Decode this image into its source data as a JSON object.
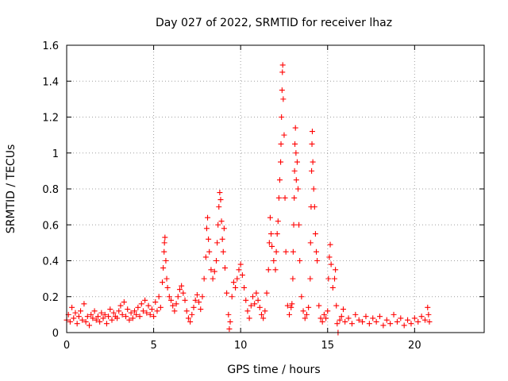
{
  "chart_data": {
    "type": "scatter",
    "title": "Day 027 of 2022, SRMTID for receiver lhaz",
    "xlabel": "GPS time / hours",
    "ylabel": "SRMTID / TECUs",
    "xlim": [
      0,
      24
    ],
    "ylim": [
      0,
      1.6
    ],
    "x_ticks": [
      0,
      5,
      10,
      15,
      20
    ],
    "x_tick_labels": [
      "0",
      "5",
      "10",
      "15",
      "20"
    ],
    "y_ticks": [
      0,
      0.2,
      0.4,
      0.6,
      0.8,
      1.0,
      1.2,
      1.4,
      1.6
    ],
    "y_tick_labels": [
      "0",
      "0.2",
      "0.4",
      "0.6",
      "0.8",
      "1",
      "1.2",
      "1.4",
      "1.6"
    ],
    "grid": true,
    "marker": "+",
    "color": "#ff0000",
    "series": [
      {
        "name": "SRMTID",
        "points": [
          [
            0.0,
            0.07
          ],
          [
            0.1,
            0.1
          ],
          [
            0.2,
            0.06
          ],
          [
            0.3,
            0.14
          ],
          [
            0.4,
            0.08
          ],
          [
            0.5,
            0.11
          ],
          [
            0.6,
            0.05
          ],
          [
            0.7,
            0.09
          ],
          [
            0.8,
            0.12
          ],
          [
            0.9,
            0.07
          ],
          [
            1.0,
            0.16
          ],
          [
            1.1,
            0.06
          ],
          [
            1.2,
            0.09
          ],
          [
            1.3,
            0.04
          ],
          [
            1.4,
            0.1
          ],
          [
            1.5,
            0.08
          ],
          [
            1.6,
            0.12
          ],
          [
            1.7,
            0.07
          ],
          [
            1.8,
            0.09
          ],
          [
            1.9,
            0.06
          ],
          [
            2.0,
            0.11
          ],
          [
            2.1,
            0.08
          ],
          [
            2.2,
            0.1
          ],
          [
            2.3,
            0.05
          ],
          [
            2.4,
            0.09
          ],
          [
            2.5,
            0.13
          ],
          [
            2.6,
            0.07
          ],
          [
            2.7,
            0.11
          ],
          [
            2.8,
            0.09
          ],
          [
            2.9,
            0.08
          ],
          [
            3.0,
            0.12
          ],
          [
            3.1,
            0.15
          ],
          [
            3.2,
            0.1
          ],
          [
            3.3,
            0.17
          ],
          [
            3.4,
            0.09
          ],
          [
            3.5,
            0.13
          ],
          [
            3.6,
            0.07
          ],
          [
            3.7,
            0.11
          ],
          [
            3.8,
            0.08
          ],
          [
            3.9,
            0.12
          ],
          [
            4.0,
            0.1
          ],
          [
            4.1,
            0.14
          ],
          [
            4.2,
            0.09
          ],
          [
            4.3,
            0.16
          ],
          [
            4.4,
            0.12
          ],
          [
            4.5,
            0.18
          ],
          [
            4.6,
            0.11
          ],
          [
            4.7,
            0.15
          ],
          [
            4.8,
            0.1
          ],
          [
            4.9,
            0.13
          ],
          [
            5.0,
            0.09
          ],
          [
            5.1,
            0.17
          ],
          [
            5.2,
            0.12
          ],
          [
            5.3,
            0.2
          ],
          [
            5.4,
            0.14
          ],
          [
            5.5,
            0.28
          ],
          [
            5.55,
            0.36
          ],
          [
            5.6,
            0.45
          ],
          [
            5.62,
            0.5
          ],
          [
            5.65,
            0.53
          ],
          [
            5.7,
            0.4
          ],
          [
            5.75,
            0.3
          ],
          [
            5.8,
            0.25
          ],
          [
            5.9,
            0.2
          ],
          [
            6.0,
            0.18
          ],
          [
            6.1,
            0.15
          ],
          [
            6.2,
            0.12
          ],
          [
            6.3,
            0.16
          ],
          [
            6.4,
            0.2
          ],
          [
            6.5,
            0.24
          ],
          [
            6.6,
            0.26
          ],
          [
            6.7,
            0.22
          ],
          [
            6.8,
            0.18
          ],
          [
            6.9,
            0.12
          ],
          [
            7.0,
            0.08
          ],
          [
            7.1,
            0.06
          ],
          [
            7.2,
            0.1
          ],
          [
            7.3,
            0.14
          ],
          [
            7.4,
            0.18
          ],
          [
            7.5,
            0.21
          ],
          [
            7.6,
            0.17
          ],
          [
            7.7,
            0.13
          ],
          [
            7.8,
            0.2
          ],
          [
            7.9,
            0.3
          ],
          [
            8.0,
            0.42
          ],
          [
            8.05,
            0.58
          ],
          [
            8.1,
            0.64
          ],
          [
            8.15,
            0.52
          ],
          [
            8.2,
            0.45
          ],
          [
            8.3,
            0.35
          ],
          [
            8.4,
            0.3
          ],
          [
            8.5,
            0.34
          ],
          [
            8.6,
            0.4
          ],
          [
            8.65,
            0.5
          ],
          [
            8.7,
            0.6
          ],
          [
            8.75,
            0.7
          ],
          [
            8.8,
            0.78
          ],
          [
            8.85,
            0.74
          ],
          [
            8.9,
            0.62
          ],
          [
            8.95,
            0.52
          ],
          [
            9.0,
            0.45
          ],
          [
            9.05,
            0.58
          ],
          [
            9.1,
            0.36
          ],
          [
            9.2,
            0.22
          ],
          [
            9.3,
            0.1
          ],
          [
            9.35,
            0.02
          ],
          [
            9.4,
            0.06
          ],
          [
            9.5,
            0.2
          ],
          [
            9.6,
            0.28
          ],
          [
            9.7,
            0.25
          ],
          [
            9.8,
            0.3
          ],
          [
            9.9,
            0.35
          ],
          [
            10.0,
            0.38
          ],
          [
            10.1,
            0.32
          ],
          [
            10.2,
            0.25
          ],
          [
            10.3,
            0.18
          ],
          [
            10.4,
            0.12
          ],
          [
            10.5,
            0.08
          ],
          [
            10.6,
            0.15
          ],
          [
            10.7,
            0.2
          ],
          [
            10.8,
            0.16
          ],
          [
            10.9,
            0.22
          ],
          [
            11.0,
            0.18
          ],
          [
            11.1,
            0.14
          ],
          [
            11.2,
            0.1
          ],
          [
            11.3,
            0.08
          ],
          [
            11.4,
            0.12
          ],
          [
            11.5,
            0.22
          ],
          [
            11.6,
            0.35
          ],
          [
            11.65,
            0.5
          ],
          [
            11.7,
            0.64
          ],
          [
            11.75,
            0.55
          ],
          [
            11.8,
            0.48
          ],
          [
            11.9,
            0.4
          ],
          [
            12.0,
            0.35
          ],
          [
            12.05,
            0.45
          ],
          [
            12.1,
            0.55
          ],
          [
            12.15,
            0.62
          ],
          [
            12.2,
            0.75
          ],
          [
            12.25,
            0.85
          ],
          [
            12.3,
            0.95
          ],
          [
            12.32,
            1.05
          ],
          [
            12.35,
            1.2
          ],
          [
            12.38,
            1.35
          ],
          [
            12.4,
            1.45
          ],
          [
            12.42,
            1.49
          ],
          [
            12.45,
            1.3
          ],
          [
            12.5,
            1.1
          ],
          [
            12.55,
            0.75
          ],
          [
            12.6,
            0.45
          ],
          [
            12.7,
            0.15
          ],
          [
            12.8,
            0.1
          ],
          [
            12.9,
            0.14
          ],
          [
            12.95,
            0.16
          ],
          [
            13.0,
            0.3
          ],
          [
            13.02,
            0.45
          ],
          [
            13.05,
            0.6
          ],
          [
            13.08,
            0.75
          ],
          [
            13.1,
            0.9
          ],
          [
            13.12,
            1.05
          ],
          [
            13.15,
            1.14
          ],
          [
            13.18,
            1.0
          ],
          [
            13.2,
            0.85
          ],
          [
            13.25,
            0.95
          ],
          [
            13.3,
            0.8
          ],
          [
            13.35,
            0.6
          ],
          [
            13.4,
            0.4
          ],
          [
            13.5,
            0.2
          ],
          [
            13.6,
            0.12
          ],
          [
            13.7,
            0.08
          ],
          [
            13.8,
            0.1
          ],
          [
            13.9,
            0.14
          ],
          [
            14.0,
            0.3
          ],
          [
            14.02,
            0.5
          ],
          [
            14.05,
            0.7
          ],
          [
            14.08,
            0.9
          ],
          [
            14.1,
            1.05
          ],
          [
            14.12,
            1.12
          ],
          [
            14.15,
            0.95
          ],
          [
            14.2,
            0.8
          ],
          [
            14.25,
            0.7
          ],
          [
            14.3,
            0.55
          ],
          [
            14.35,
            0.45
          ],
          [
            14.4,
            0.4
          ],
          [
            14.5,
            0.15
          ],
          [
            14.6,
            0.08
          ],
          [
            14.7,
            0.06
          ],
          [
            14.8,
            0.1
          ],
          [
            14.9,
            0.08
          ],
          [
            15.0,
            0.12
          ],
          [
            15.05,
            0.3
          ],
          [
            15.1,
            0.42
          ],
          [
            15.15,
            0.49
          ],
          [
            15.2,
            0.38
          ],
          [
            15.3,
            0.25
          ],
          [
            15.4,
            0.3
          ],
          [
            15.45,
            0.35
          ],
          [
            15.5,
            0.15
          ],
          [
            15.55,
            0.05
          ],
          [
            15.6,
            0.0
          ],
          [
            15.7,
            0.07
          ],
          [
            15.8,
            0.09
          ],
          [
            15.9,
            0.13
          ],
          [
            16.0,
            0.06
          ],
          [
            16.2,
            0.08
          ],
          [
            16.4,
            0.05
          ],
          [
            16.6,
            0.1
          ],
          [
            16.8,
            0.07
          ],
          [
            17.0,
            0.06
          ],
          [
            17.2,
            0.09
          ],
          [
            17.4,
            0.05
          ],
          [
            17.6,
            0.08
          ],
          [
            17.8,
            0.06
          ],
          [
            18.0,
            0.09
          ],
          [
            18.2,
            0.04
          ],
          [
            18.4,
            0.07
          ],
          [
            18.6,
            0.05
          ],
          [
            18.8,
            0.1
          ],
          [
            19.0,
            0.06
          ],
          [
            19.2,
            0.08
          ],
          [
            19.4,
            0.04
          ],
          [
            19.6,
            0.07
          ],
          [
            19.8,
            0.05
          ],
          [
            20.0,
            0.08
          ],
          [
            20.2,
            0.06
          ],
          [
            20.4,
            0.09
          ],
          [
            20.6,
            0.07
          ],
          [
            20.75,
            0.14
          ],
          [
            20.8,
            0.1
          ],
          [
            20.85,
            0.06
          ]
        ]
      }
    ]
  }
}
